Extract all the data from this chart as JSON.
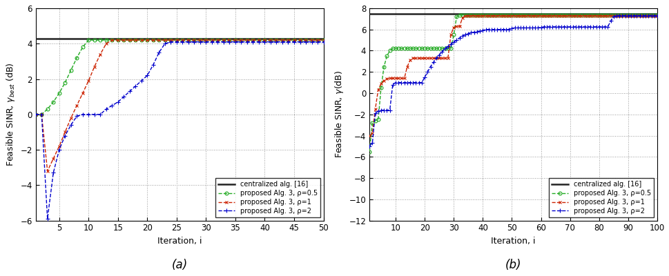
{
  "subplot_a": {
    "title": "(a)",
    "xlabel": "Iteration, i",
    "ylabel_math": "Feasible SINR, $\\gamma_{best}$ (dB)",
    "xlim": [
      1,
      50
    ],
    "ylim": [
      -6,
      6
    ],
    "yticks": [
      -6,
      -4,
      -2,
      0,
      2,
      4,
      6
    ],
    "xticks": [
      5,
      10,
      15,
      20,
      25,
      30,
      35,
      40,
      45,
      50
    ],
    "centralized_value": 4.3
  },
  "subplot_b": {
    "title": "(b)",
    "xlabel": "Iteration, i",
    "ylabel_math": "Feasible SINR, $\\gamma$(dB)",
    "xlim": [
      1,
      100
    ],
    "ylim": [
      -12,
      8
    ],
    "yticks": [
      -12,
      -10,
      -8,
      -6,
      -4,
      -2,
      0,
      2,
      4,
      6,
      8
    ],
    "xticks": [
      10,
      20,
      30,
      40,
      50,
      60,
      70,
      80,
      90,
      100
    ],
    "centralized_value": 7.5
  },
  "colors": {
    "centralized": "#222222",
    "green": "#22aa22",
    "red": "#cc2200",
    "blue": "#0000cc"
  },
  "legend_labels": [
    "centralized alg. [16]",
    "proposed Alg. 3, ρ=0.5",
    "proposed Alg. 3, ρ=1",
    "proposed Alg. 3, ρ=2"
  ]
}
